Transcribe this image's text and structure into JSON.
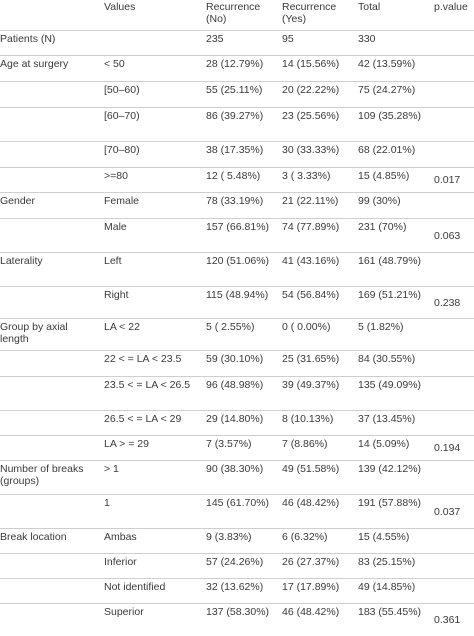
{
  "headers": [
    "",
    "Values",
    "Recurrence (No)",
    "Recurrence (Yes)",
    "Total",
    "p.value"
  ],
  "rows": [
    {
      "group": "Patients (N)",
      "value": "",
      "no": "235",
      "yes": "95",
      "total": "330",
      "p": ""
    },
    {
      "group": "Age at surgery",
      "value": "< 50",
      "no": "28 (12.79%)",
      "yes": "14 (15.56%)",
      "total": "42 (13.59%)",
      "p": ""
    },
    {
      "group": "",
      "value": "[50–60)",
      "no": "55 (25.11%)",
      "yes": "20 (22.22%)",
      "total": "75 (24.27%)",
      "p": ""
    },
    {
      "group": "",
      "value": "[60–70)",
      "no": "86 (39.27%)",
      "yes": "23 (25.56%)",
      "total": "109 (35.28%)",
      "p": ""
    },
    {
      "group": "",
      "value": "[70–80)",
      "no": "38 (17.35%)",
      "yes": "30 (33.33%)",
      "total": "68 (22.01%)",
      "p": ""
    },
    {
      "group": "",
      "value": ">=80",
      "no": "12 ( 5.48%)",
      "yes": "3 ( 3.33%)",
      "total": "15 (4.85%)",
      "p": "0.017"
    },
    {
      "group": "Gender",
      "value": "Female",
      "no": "78 (33.19%)",
      "yes": "21 (22.11%)",
      "total": "99 (30%)",
      "p": ""
    },
    {
      "group": "",
      "value": "Male",
      "no": "157 (66.81%)",
      "yes": "74 (77.89%)",
      "total": "231 (70%)",
      "p": "0.063"
    },
    {
      "group": "Laterality",
      "value": "Left",
      "no": "120 (51.06%)",
      "yes": "41 (43.16%)",
      "total": "161 (48.79%)",
      "p": ""
    },
    {
      "group": "",
      "value": "Right",
      "no": "115 (48.94%)",
      "yes": "54 (56.84%)",
      "total": "169 (51.21%)",
      "p": "0.238"
    },
    {
      "group": "Group by axial length",
      "value": "LA < 22",
      "no": "5 ( 2.55%)",
      "yes": "0 ( 0.00%)",
      "total": "5 (1.82%)",
      "p": ""
    },
    {
      "group": "",
      "value": "22 < = LA < 23.5",
      "no": "59 (30.10%)",
      "yes": "25 (31.65%)",
      "total": "84 (30.55%)",
      "p": ""
    },
    {
      "group": "",
      "value": "23.5 < = LA < 26.5",
      "no": "96 (48.98%)",
      "yes": "39 (49.37%)",
      "total": "135 (49.09%)",
      "p": ""
    },
    {
      "group": "",
      "value": "26.5 < = LA < 29",
      "no": "29 (14.80%)",
      "yes": "8 (10.13%)",
      "total": "37 (13.45%)",
      "p": ""
    },
    {
      "group": "",
      "value": "LA > = 29",
      "no": "7 (3.57%)",
      "yes": "7 (8.86%)",
      "total": "14 (5.09%)",
      "p": "0.194"
    },
    {
      "group": "Number of breaks (groups)",
      "value": "> 1",
      "no": "90 (38.30%)",
      "yes": "49 (51.58%)",
      "total": "139 (42.12%)",
      "p": ""
    },
    {
      "group": "",
      "value": "1",
      "no": "145 (61.70%)",
      "yes": "46 (48.42%)",
      "total": "191 (57.88%)",
      "p": "0.037"
    },
    {
      "group": "Break location",
      "value": "Ambas",
      "no": "9 (3.83%)",
      "yes": "6 (6.32%)",
      "total": "15 (4.55%)",
      "p": ""
    },
    {
      "group": "",
      "value": "Inferior",
      "no": "57 (24.26%)",
      "yes": "26 (27.37%)",
      "total": "83 (25.15%)",
      "p": ""
    },
    {
      "group": "",
      "value": "Not identified",
      "no": "32 (13.62%)",
      "yes": "17 (17.89%)",
      "total": "49 (14.85%)",
      "p": ""
    },
    {
      "group": "",
      "value": "Superior",
      "no": "137 (58.30%)",
      "yes": "46 (48.42%)",
      "total": "183 (55.45%)",
      "p": "0.361"
    }
  ]
}
